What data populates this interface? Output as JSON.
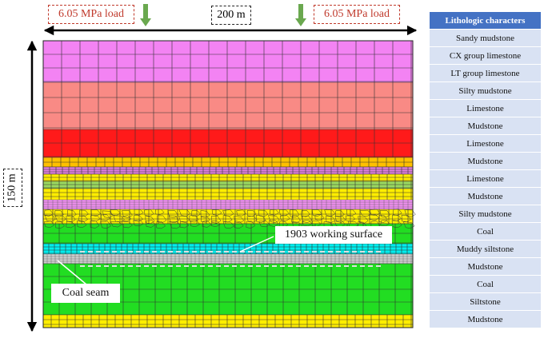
{
  "loads": {
    "left": "6.05 MPa load",
    "right": "6.05 MPa load"
  },
  "dimensions": {
    "width": "200 m",
    "height": "150 m"
  },
  "labels": {
    "working_surface": "1903 working surface",
    "coal_seam": "Coal seam"
  },
  "colors": {
    "arrow_green": "#6aa84f",
    "load_text": "#c0392b",
    "header_blue": "#4472c4",
    "row_blue": "#d9e2f3"
  },
  "table": {
    "header": "Lithologic characters",
    "rows": [
      "Sandy mudstone",
      "CX group limestone",
      "LT group limestone",
      "Silty mudstone",
      "Limestone",
      "Mudstone",
      "Limestone",
      "Mudstone",
      "Limestone",
      "Mudstone",
      "Silty mudstone",
      "Coal",
      "Muddy siltstone",
      "Mudstone",
      "Coal",
      "Siltstone",
      "Mudstone"
    ]
  },
  "strata": [
    {
      "rock": "Sandy mudstone",
      "color": "#f383f3"
    },
    {
      "rock": "CX group limestone",
      "color": "#f98a85"
    },
    {
      "rock": "LT group limestone",
      "color": "#ff1a1a"
    },
    {
      "rock": "Silty mudstone",
      "color": "#ffc000"
    },
    {
      "rock": "Limestone",
      "color": "#e080e0"
    },
    {
      "rock": "Mudstone",
      "color": "#ffee00"
    },
    {
      "rock": "Limestone",
      "color": "#9bd960"
    },
    {
      "rock": "Mudstone",
      "color": "#ffee00"
    },
    {
      "rock": "Limestone",
      "color": "#f090f0"
    },
    {
      "rock": "Mudstone",
      "color": "#ffee00"
    },
    {
      "rock": "Silty mudstone",
      "color": "#e070e0"
    },
    {
      "rock": "Coal",
      "color": "#22dd22"
    },
    {
      "rock": "Muddy siltstone",
      "color": "#00eeee"
    },
    {
      "rock": "Mudstone",
      "color": "#d0d0d0"
    },
    {
      "rock": "Coal",
      "color": "#22dd22"
    },
    {
      "rock": "Siltstone",
      "color": "#22dd22"
    },
    {
      "rock": "Mudstone",
      "color": "#ffee00"
    }
  ]
}
